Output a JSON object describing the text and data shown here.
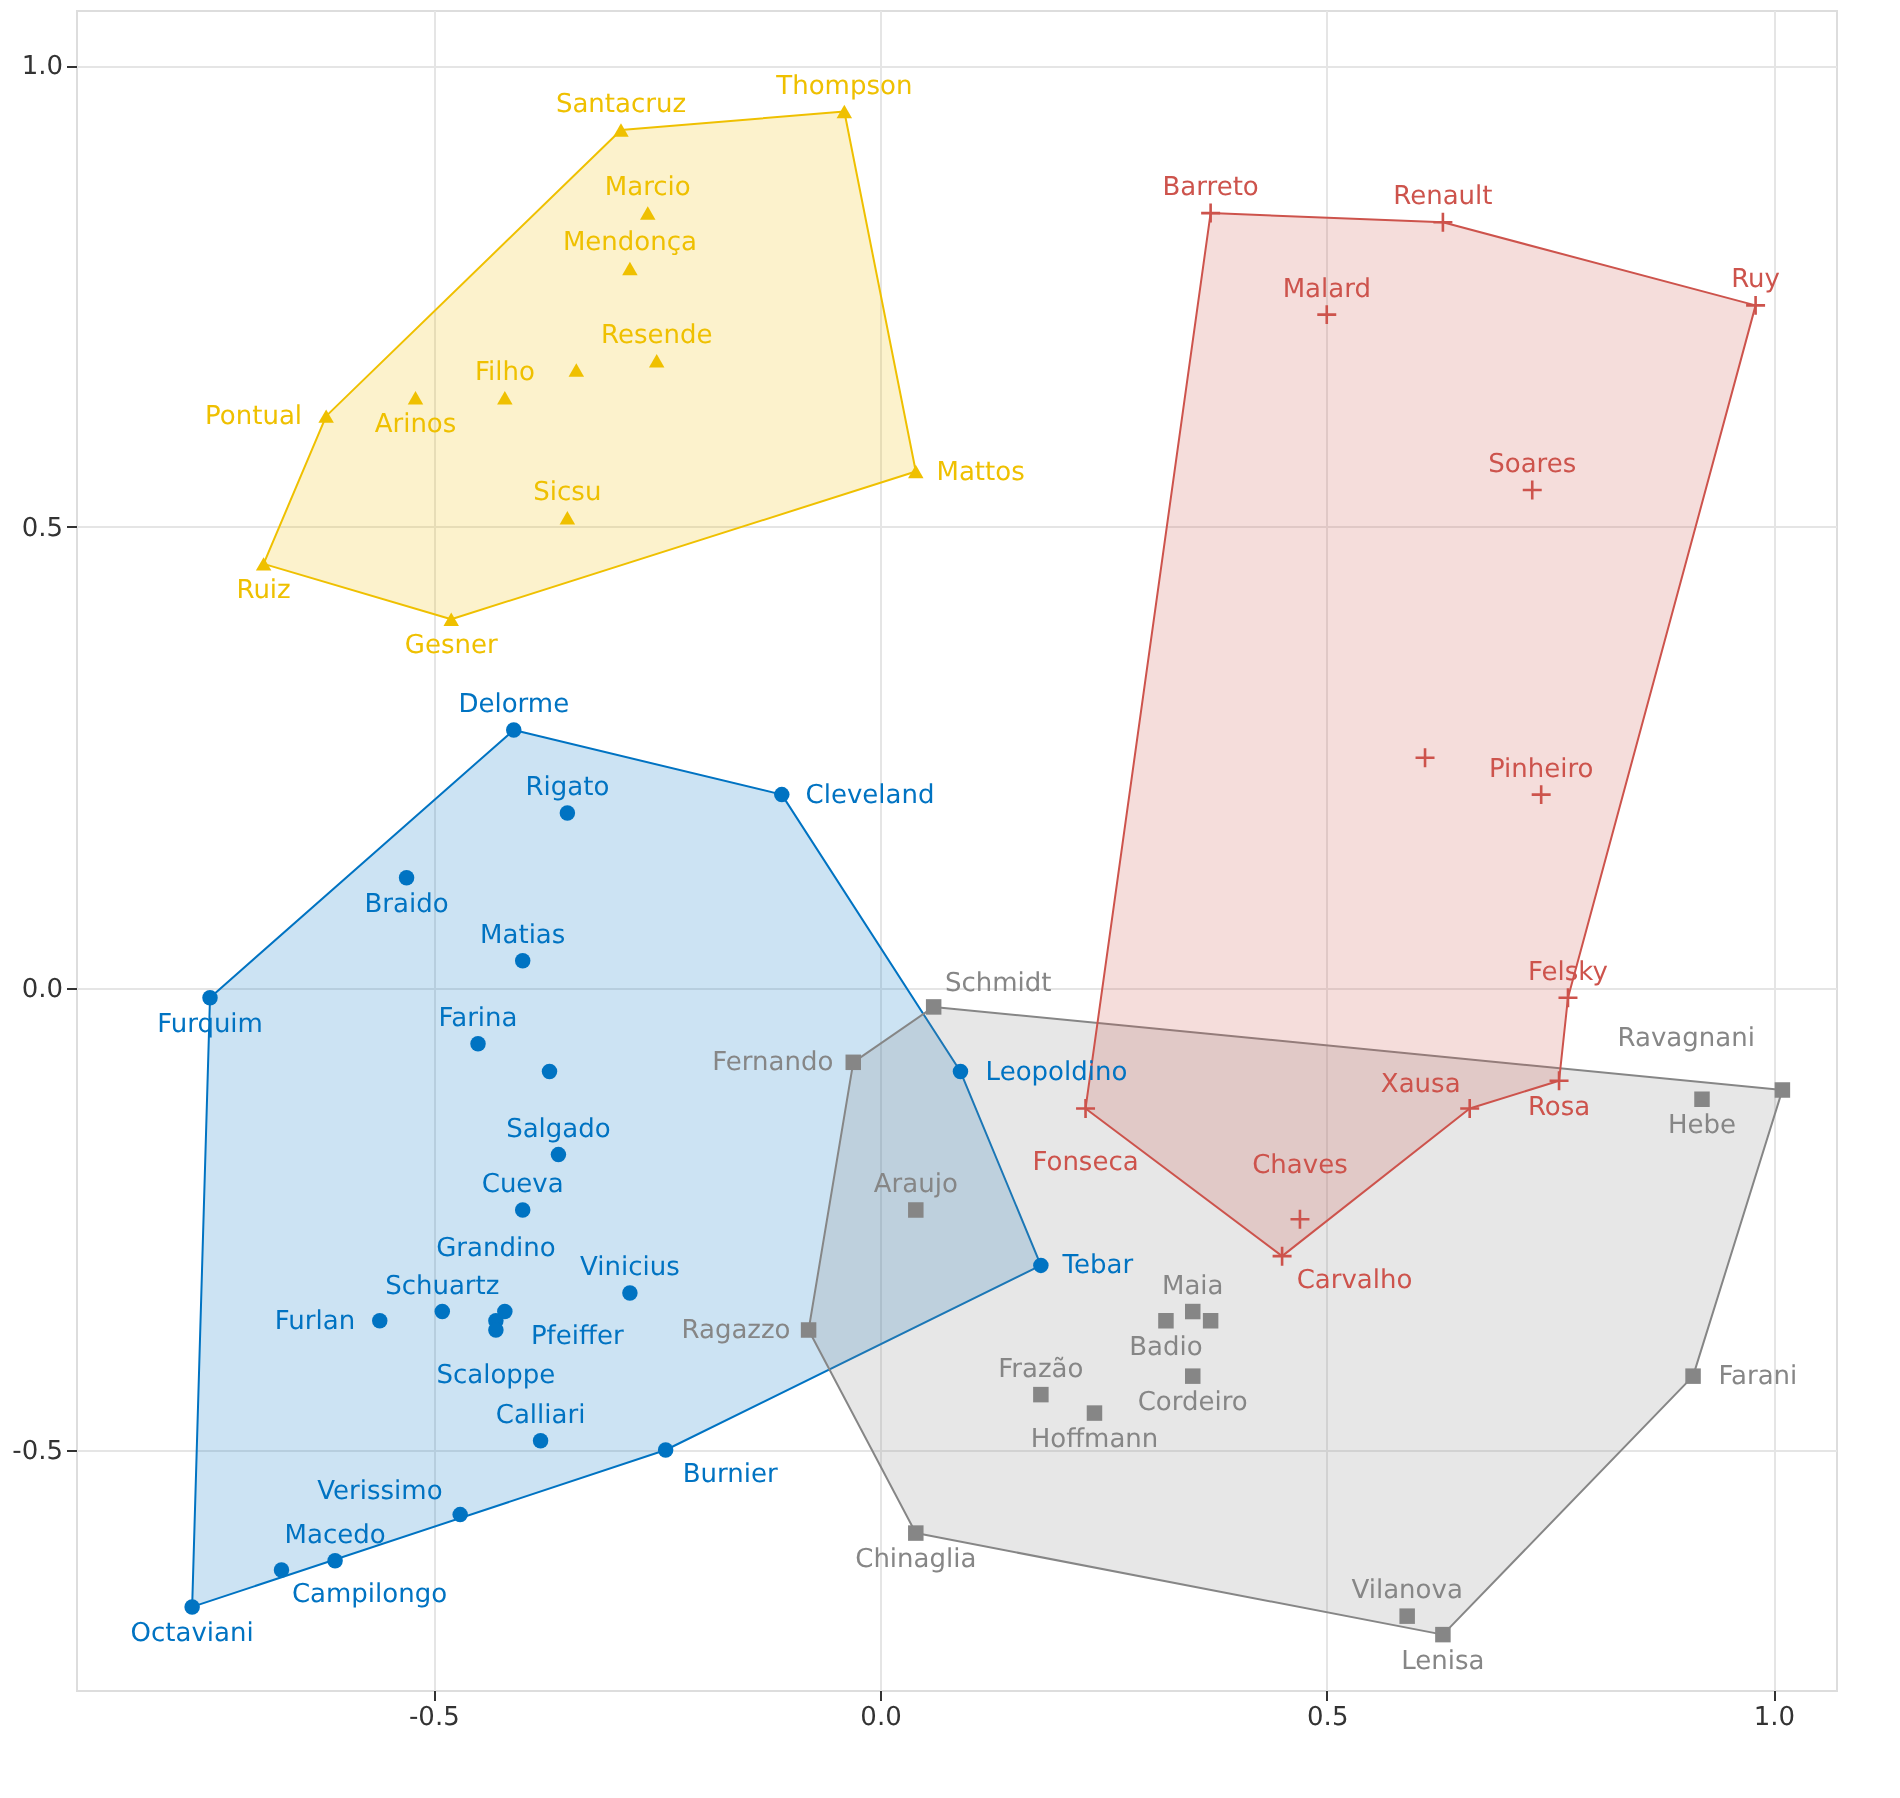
{
  "chart_data": {
    "type": "scatter",
    "xlim": [
      -0.9,
      1.07
    ],
    "ylim": [
      -0.76,
      1.06
    ],
    "xticks": [
      -0.5,
      {
        "value": 0,
        "label": "0.0"
      },
      0.5,
      {
        "value": 1,
        "label": "1.0"
      }
    ],
    "yticks": [
      -0.5,
      {
        "value": 0,
        "label": "0.0"
      },
      0.5,
      {
        "value": 1,
        "label": "1.0"
      }
    ],
    "grid": true,
    "legend": false,
    "series": [
      {
        "type": "area",
        "color": "#efc000",
        "x": [
          -0.69,
          -0.62,
          -0.29,
          -0.04,
          0.04,
          -0.48,
          -0.69
        ],
        "values": [
          0.46,
          0.62,
          0.93,
          0.95,
          0.56,
          0.4,
          0.46
        ]
      },
      {
        "type": "area",
        "color": "#0073c2",
        "x": [
          -0.77,
          -0.75,
          -0.41,
          -0.11,
          0.09,
          0.18,
          -0.24,
          -0.77
        ],
        "values": [
          -0.67,
          -0.01,
          0.28,
          0.21,
          -0.09,
          -0.3,
          -0.5,
          -0.67
        ]
      },
      {
        "type": "area",
        "color": "#868686",
        "x": [
          0.06,
          1.01,
          0.91,
          0.63,
          0.04,
          -0.08,
          -0.03,
          0.06
        ],
        "values": [
          -0.02,
          -0.11,
          -0.42,
          -0.7,
          -0.59,
          -0.37,
          -0.08,
          -0.02
        ]
      },
      {
        "type": "area",
        "color": "#cd534c",
        "x": [
          0.37,
          0.63,
          0.98,
          0.77,
          0.76,
          0.66,
          0.45,
          0.23,
          0.37
        ],
        "values": [
          0.84,
          0.83,
          0.74,
          -0.01,
          -0.1,
          -0.13,
          -0.29,
          -0.13,
          0.84
        ]
      },
      {
        "type": "scatter",
        "marker": "triangle",
        "color": "#efc000",
        "x": [
          -0.29,
          -0.04,
          -0.26,
          -0.28,
          -0.34,
          -0.25,
          -0.42,
          -0.52,
          -0.62,
          -0.35,
          0.04,
          -0.69,
          -0.48
        ],
        "values": [
          0.93,
          0.95,
          0.84,
          0.78,
          0.67,
          0.68,
          0.64,
          0.64,
          0.62,
          0.51,
          0.56,
          0.46,
          0.4
        ]
      },
      {
        "type": "scatter",
        "marker": "circle",
        "color": "#0073c2",
        "x": [
          -0.41,
          -0.11,
          -0.35,
          -0.53,
          -0.4,
          -0.75,
          -0.45,
          -0.37,
          -0.36,
          -0.4,
          0.09,
          0.18,
          -0.28,
          -0.49,
          -0.43,
          -0.42,
          -0.43,
          -0.56,
          -0.38,
          -0.24,
          -0.47,
          -0.61,
          -0.67,
          -0.77
        ],
        "values": [
          0.28,
          0.21,
          0.19,
          0.12,
          0.03,
          -0.01,
          -0.06,
          -0.09,
          -0.18,
          -0.24,
          -0.09,
          -0.3,
          -0.33,
          -0.35,
          -0.36,
          -0.35,
          -0.37,
          -0.36,
          -0.49,
          -0.5,
          -0.57,
          -0.62,
          -0.63,
          -0.67
        ]
      },
      {
        "type": "scatter",
        "marker": "square",
        "color": "#868686",
        "x": [
          0.06,
          -0.03,
          0.04,
          -0.08,
          0.18,
          0.24,
          0.32,
          0.35,
          0.35,
          0.37,
          1.01,
          0.92,
          0.91,
          0.04,
          0.59,
          0.63
        ],
        "values": [
          -0.02,
          -0.08,
          -0.24,
          -0.37,
          -0.44,
          -0.46,
          -0.36,
          -0.35,
          -0.42,
          -0.36,
          -0.11,
          -0.12,
          -0.42,
          -0.59,
          -0.68,
          -0.7
        ]
      },
      {
        "type": "scatter",
        "marker": "cross",
        "color": "#cd534c",
        "x": [
          0.37,
          0.63,
          0.98,
          0.5,
          0.73,
          0.61,
          0.74,
          0.77,
          0.76,
          0.66,
          0.23,
          0.47,
          0.45
        ],
        "values": [
          0.84,
          0.83,
          0.74,
          0.73,
          0.54,
          0.25,
          0.21,
          -0.01,
          -0.1,
          -0.13,
          -0.13,
          -0.25,
          -0.29
        ]
      }
    ],
    "annotations": [
      {
        "text": "Santacruz",
        "x": -0.29,
        "y": 0.93
      },
      {
        "text": "Thompson",
        "x": -0.04,
        "y": 0.95
      },
      {
        "text": "Marcio",
        "x": -0.26,
        "y": 0.84
      },
      {
        "text": "Mendonça",
        "x": -0.28,
        "y": 0.78
      },
      {
        "text": "Resende",
        "x": -0.25,
        "y": 0.68
      },
      {
        "text": "Filho",
        "x": -0.42,
        "y": 0.64
      },
      {
        "text": "Arinos",
        "x": -0.52,
        "y": 0.64
      },
      {
        "text": "Pontual",
        "x": -0.62,
        "y": 0.62
      },
      {
        "text": "Sicsu",
        "x": -0.35,
        "y": 0.51
      },
      {
        "text": "Mattos",
        "x": 0.04,
        "y": 0.56
      },
      {
        "text": "Ruiz",
        "x": -0.69,
        "y": 0.46
      },
      {
        "text": "Gesner",
        "x": -0.48,
        "y": 0.4
      },
      {
        "text": "Delorme",
        "x": -0.41,
        "y": 0.28
      },
      {
        "text": "Cleveland",
        "x": -0.11,
        "y": 0.21
      },
      {
        "text": "Rigato",
        "x": -0.35,
        "y": 0.19
      },
      {
        "text": "Braido",
        "x": -0.53,
        "y": 0.12
      },
      {
        "text": "Matias",
        "x": -0.4,
        "y": 0.03
      },
      {
        "text": "Furquim",
        "x": -0.75,
        "y": -0.01
      },
      {
        "text": "Farina",
        "x": -0.45,
        "y": -0.06
      },
      {
        "text": "Salgado",
        "x": -0.36,
        "y": -0.18
      },
      {
        "text": "Cueva",
        "x": -0.4,
        "y": -0.24
      },
      {
        "text": "Leopoldino",
        "x": 0.09,
        "y": -0.09
      },
      {
        "text": "Tebar",
        "x": 0.18,
        "y": -0.3
      },
      {
        "text": "Vinicius",
        "x": -0.28,
        "y": -0.33
      },
      {
        "text": "Schuartz",
        "x": -0.49,
        "y": -0.35
      },
      {
        "text": "Pfeiffer",
        "x": -0.42,
        "y": -0.35
      },
      {
        "text": "Scaloppe",
        "x": -0.43,
        "y": -0.36
      },
      {
        "text": "Grandino",
        "x": -0.43,
        "y": -0.37
      },
      {
        "text": "Furlan",
        "x": -0.56,
        "y": -0.36
      },
      {
        "text": "Calliari",
        "x": -0.38,
        "y": -0.49
      },
      {
        "text": "Burnier",
        "x": -0.24,
        "y": -0.5
      },
      {
        "text": "Verissimo",
        "x": -0.47,
        "y": -0.57
      },
      {
        "text": "Macedo",
        "x": -0.61,
        "y": -0.62
      },
      {
        "text": "Campilongo",
        "x": -0.67,
        "y": -0.63
      },
      {
        "text": "Octaviani",
        "x": -0.77,
        "y": -0.67
      },
      {
        "text": "Schmidt",
        "x": 0.06,
        "y": -0.02
      },
      {
        "text": "Fernando",
        "x": -0.03,
        "y": -0.08
      },
      {
        "text": "Araujo",
        "x": 0.04,
        "y": -0.24
      },
      {
        "text": "Ragazzo",
        "x": -0.08,
        "y": -0.37
      },
      {
        "text": "Frazão",
        "x": 0.18,
        "y": -0.44
      },
      {
        "text": "Hoffmann",
        "x": 0.24,
        "y": -0.46
      },
      {
        "text": "Badio",
        "x": 0.32,
        "y": -0.36
      },
      {
        "text": "Maia",
        "x": 0.35,
        "y": -0.35
      },
      {
        "text": "Cordeiro",
        "x": 0.35,
        "y": -0.42
      },
      {
        "text": "Ravagnani",
        "x": 1.01,
        "y": -0.11
      },
      {
        "text": "Hebe",
        "x": 0.92,
        "y": -0.12
      },
      {
        "text": "Farani",
        "x": 0.91,
        "y": -0.42
      },
      {
        "text": "Chinaglia",
        "x": 0.04,
        "y": -0.59
      },
      {
        "text": "Vilanova",
        "x": 0.59,
        "y": -0.68
      },
      {
        "text": "Lenisa",
        "x": 0.63,
        "y": -0.7
      },
      {
        "text": "Barreto",
        "x": 0.37,
        "y": 0.84
      },
      {
        "text": "Renault",
        "x": 0.63,
        "y": 0.83
      },
      {
        "text": "Ruy",
        "x": 0.98,
        "y": 0.74
      },
      {
        "text": "Malard",
        "x": 0.5,
        "y": 0.73
      },
      {
        "text": "Soares",
        "x": 0.73,
        "y": 0.54
      },
      {
        "text": "Pinheiro",
        "x": 0.74,
        "y": 0.21
      },
      {
        "text": "Felsky",
        "x": 0.77,
        "y": -0.01
      },
      {
        "text": "Rosa",
        "x": 0.76,
        "y": -0.1
      },
      {
        "text": "Xausa",
        "x": 0.66,
        "y": -0.13
      },
      {
        "text": "Fonseca",
        "x": 0.23,
        "y": -0.13
      },
      {
        "text": "Chaves",
        "x": 0.47,
        "y": -0.25
      },
      {
        "text": "Carvalho",
        "x": 0.45,
        "y": -0.29
      }
    ]
  }
}
